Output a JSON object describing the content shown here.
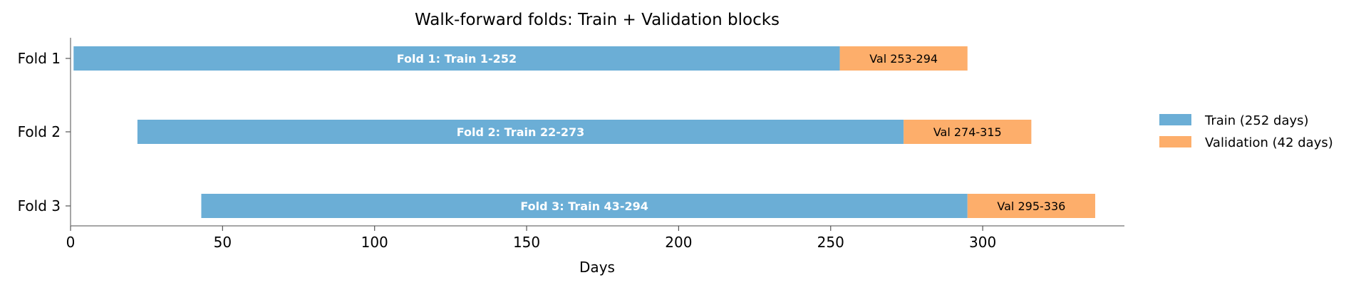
{
  "chart_data": {
    "type": "bar",
    "orientation": "horizontal",
    "title": "Walk-forward folds: Train + Validation blocks",
    "xlabel": "Days",
    "ylabel": "",
    "xlim": [
      0,
      345
    ],
    "xticks": [
      0,
      50,
      100,
      150,
      200,
      250,
      300
    ],
    "grid": false,
    "legend_position": "right",
    "categories": [
      "Fold 1",
      "Fold 2",
      "Fold 3"
    ],
    "series": [
      {
        "name": "Train (252 days)",
        "color": "#6baed6",
        "segments": [
          {
            "start": 1,
            "end": 253,
            "label": "Fold 1: Train 1-252"
          },
          {
            "start": 22,
            "end": 274,
            "label": "Fold 2: Train 22-273"
          },
          {
            "start": 43,
            "end": 295,
            "label": "Fold 3: Train 43-294"
          }
        ]
      },
      {
        "name": "Validation (42 days)",
        "color": "#fdae6b",
        "segments": [
          {
            "start": 253,
            "end": 295,
            "label": "Val 253-294"
          },
          {
            "start": 274,
            "end": 316,
            "label": "Val 274-315"
          },
          {
            "start": 295,
            "end": 337,
            "label": "Val 295-336"
          }
        ]
      }
    ]
  }
}
